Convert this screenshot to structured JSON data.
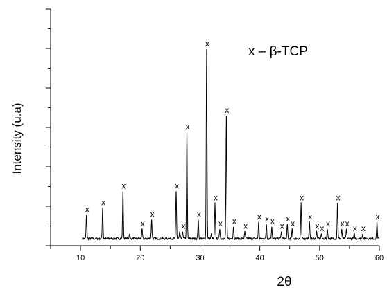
{
  "chart_data": {
    "type": "line",
    "title": "",
    "xlabel": "2θ",
    "ylabel": "Intensity (u.a)",
    "xlim": [
      5,
      60
    ],
    "ylim": [
      0,
      100
    ],
    "x_ticks": [
      10,
      20,
      30,
      40,
      50,
      60
    ],
    "y_tick_labels": false,
    "grid": false,
    "legend": {
      "text": "x – β-TCP",
      "placement": "top-right"
    },
    "peak_marker": "x",
    "baseline": 3,
    "peaks": [
      {
        "x": 11.0,
        "y": 10,
        "label": true
      },
      {
        "x": 13.7,
        "y": 13,
        "label": true
      },
      {
        "x": 17.1,
        "y": 20,
        "label": true
      },
      {
        "x": 18.2,
        "y": 2,
        "label": false
      },
      {
        "x": 20.3,
        "y": 4,
        "label": true
      },
      {
        "x": 21.9,
        "y": 8,
        "label": true
      },
      {
        "x": 26.0,
        "y": 20,
        "label": true
      },
      {
        "x": 26.6,
        "y": 3,
        "label": false
      },
      {
        "x": 27.1,
        "y": 3,
        "label": true
      },
      {
        "x": 27.8,
        "y": 45,
        "label": true
      },
      {
        "x": 29.7,
        "y": 8,
        "label": true
      },
      {
        "x": 31.1,
        "y": 80,
        "label": true
      },
      {
        "x": 31.9,
        "y": 2,
        "label": false
      },
      {
        "x": 32.5,
        "y": 15,
        "label": true
      },
      {
        "x": 33.3,
        "y": 4,
        "label": true
      },
      {
        "x": 34.4,
        "y": 52,
        "label": true
      },
      {
        "x": 35.6,
        "y": 5,
        "label": true
      },
      {
        "x": 37.5,
        "y": 3,
        "label": true
      },
      {
        "x": 39.8,
        "y": 7,
        "label": true
      },
      {
        "x": 41.1,
        "y": 6,
        "label": true
      },
      {
        "x": 42.0,
        "y": 5,
        "label": true
      },
      {
        "x": 43.6,
        "y": 3,
        "label": true
      },
      {
        "x": 44.6,
        "y": 6,
        "label": true
      },
      {
        "x": 45.4,
        "y": 4,
        "label": true
      },
      {
        "x": 46.9,
        "y": 15,
        "label": true
      },
      {
        "x": 48.3,
        "y": 7,
        "label": true
      },
      {
        "x": 49.5,
        "y": 3,
        "label": true
      },
      {
        "x": 50.3,
        "y": 2,
        "label": true
      },
      {
        "x": 51.3,
        "y": 4,
        "label": true
      },
      {
        "x": 53.0,
        "y": 15,
        "label": true
      },
      {
        "x": 53.7,
        "y": 4,
        "label": true
      },
      {
        "x": 54.5,
        "y": 4,
        "label": true
      },
      {
        "x": 55.8,
        "y": 2,
        "label": true
      },
      {
        "x": 57.2,
        "y": 2,
        "label": true
      },
      {
        "x": 59.6,
        "y": 7,
        "label": true
      }
    ]
  }
}
